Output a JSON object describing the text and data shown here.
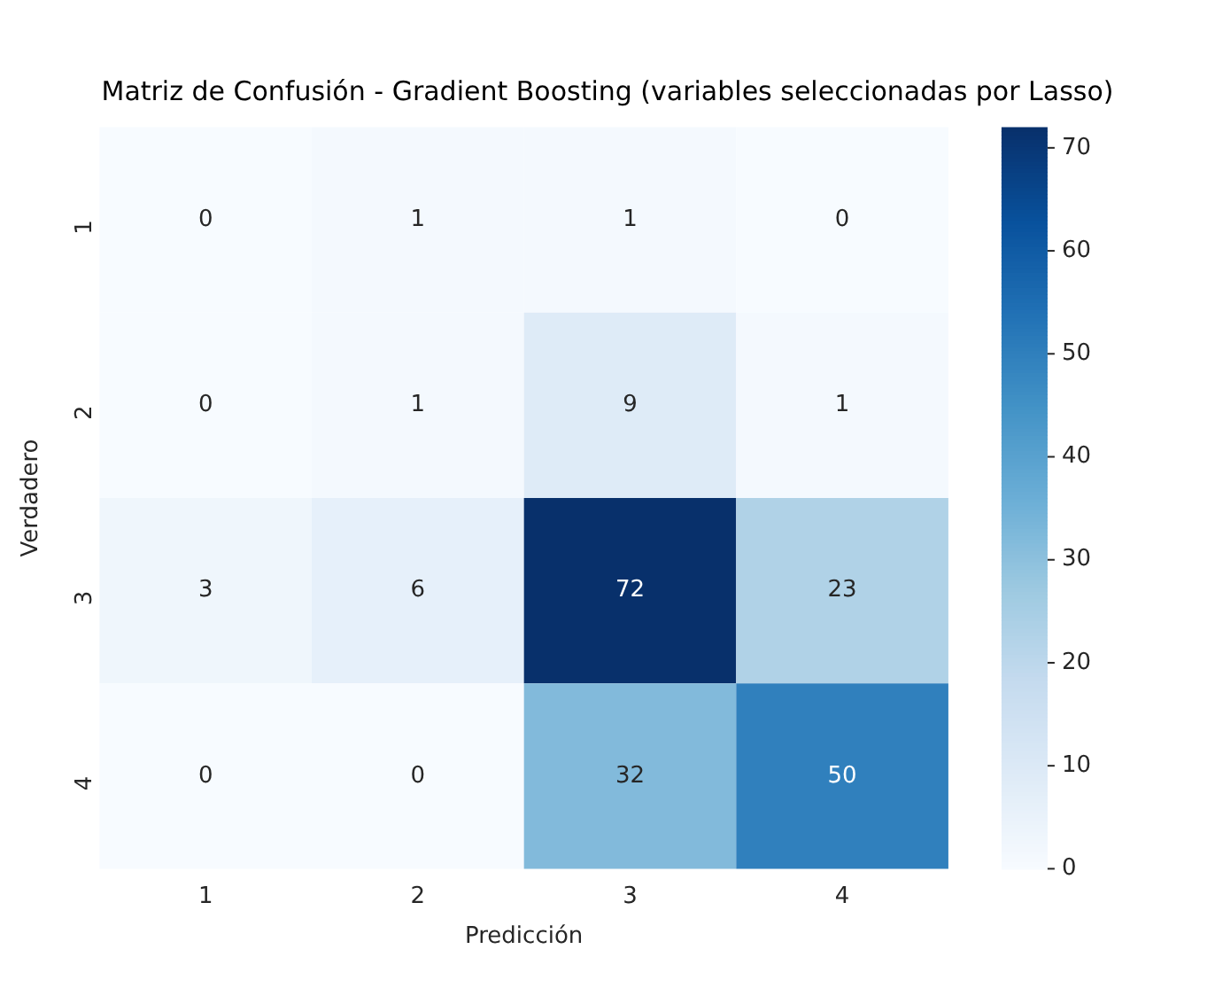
{
  "chart_data": {
    "type": "heatmap",
    "title": "Matriz de Confusión - Gradient Boosting (variables seleccionadas por Lasso)",
    "xlabel": "Predicción",
    "ylabel": "Verdadero",
    "categories": [
      "1",
      "2",
      "3",
      "4"
    ],
    "y_categories": [
      "1",
      "2",
      "3",
      "4"
    ],
    "cells": [
      [
        0,
        1,
        1,
        0
      ],
      [
        0,
        1,
        9,
        1
      ],
      [
        3,
        6,
        72,
        23
      ],
      [
        0,
        0,
        32,
        50
      ]
    ],
    "clim": [
      0,
      72
    ],
    "cticks": [
      0,
      10,
      20,
      30,
      40,
      50,
      60,
      70
    ],
    "data_labels": true
  }
}
